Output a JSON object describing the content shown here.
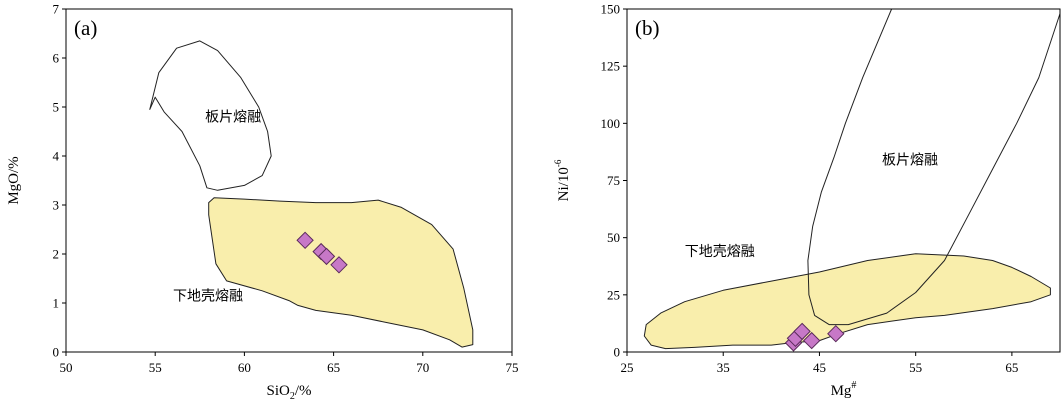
{
  "chart_data": [
    {
      "type": "scatter",
      "panel_label": "(a)",
      "xlabel": "SiO",
      "xlabel_sub": "2",
      "xlabel_suffix": "/%",
      "ylabel": "MgO/%",
      "xlim": [
        50,
        75
      ],
      "ylim": [
        0,
        7
      ],
      "xticks": [
        "50",
        "55",
        "60",
        "65",
        "70",
        "75"
      ],
      "yticks": [
        "0",
        "1",
        "2",
        "3",
        "4",
        "5",
        "6",
        "7"
      ],
      "fields": [
        {
          "name": "板片熔融",
          "fill": "none",
          "label_at": [
            57.8,
            4.7
          ],
          "outline": [
            [
              55.0,
              5.2
            ],
            [
              54.7,
              4.95
            ],
            [
              55.2,
              5.7
            ],
            [
              56.2,
              6.2
            ],
            [
              57.5,
              6.35
            ],
            [
              58.5,
              6.15
            ],
            [
              59.8,
              5.6
            ],
            [
              60.8,
              5.0
            ],
            [
              61.3,
              4.5
            ],
            [
              61.5,
              4.0
            ],
            [
              61.0,
              3.6
            ],
            [
              60.0,
              3.4
            ],
            [
              58.5,
              3.3
            ],
            [
              57.9,
              3.35
            ],
            [
              57.5,
              3.8
            ],
            [
              56.5,
              4.5
            ],
            [
              55.5,
              4.9
            ]
          ]
        },
        {
          "name": "下地壳熔融",
          "fill": "#f9eeac",
          "label_at": [
            56.0,
            1.05
          ],
          "outline": [
            [
              58.0,
              3.05
            ],
            [
              58.3,
              3.15
            ],
            [
              60.0,
              3.12
            ],
            [
              62.0,
              3.08
            ],
            [
              64.0,
              3.05
            ],
            [
              66.0,
              3.05
            ],
            [
              67.5,
              3.1
            ],
            [
              68.8,
              2.95
            ],
            [
              70.5,
              2.6
            ],
            [
              71.7,
              2.1
            ],
            [
              72.3,
              1.3
            ],
            [
              72.8,
              0.45
            ],
            [
              72.8,
              0.15
            ],
            [
              72.2,
              0.1
            ],
            [
              71.5,
              0.25
            ],
            [
              70.0,
              0.45
            ],
            [
              68.0,
              0.6
            ],
            [
              66.0,
              0.75
            ],
            [
              64.0,
              0.85
            ],
            [
              63.0,
              0.95
            ],
            [
              62.5,
              1.05
            ],
            [
              61.0,
              1.25
            ],
            [
              59.0,
              1.45
            ],
            [
              58.4,
              1.8
            ],
            [
              58.2,
              2.3
            ],
            [
              58.0,
              2.8
            ]
          ]
        }
      ],
      "points": [
        {
          "x": 63.4,
          "y": 2.28
        },
        {
          "x": 64.3,
          "y": 2.05
        },
        {
          "x": 64.6,
          "y": 1.95
        },
        {
          "x": 65.3,
          "y": 1.78
        }
      ],
      "marker": {
        "shape": "diamond",
        "fill": "#c778c7",
        "stroke": "#5a2a5a"
      }
    },
    {
      "type": "scatter",
      "panel_label": "(b)",
      "xlabel": "Mg",
      "xlabel_sup": "#",
      "ylabel": "Ni/10",
      "ylabel_sup": "-6",
      "xlim": [
        25,
        70
      ],
      "ylim": [
        0,
        150
      ],
      "xticks": [
        "25",
        "35",
        "45",
        "55",
        "65"
      ],
      "yticks": [
        "0",
        "25",
        "50",
        "75",
        "100",
        "125",
        "150"
      ],
      "fields": [
        {
          "name": "下地壳熔融",
          "fill": "#f9eeac",
          "label_at": [
            31.0,
            42.0
          ],
          "outline": [
            [
              27.5,
              3
            ],
            [
              26.8,
              7
            ],
            [
              27.0,
              12
            ],
            [
              28.5,
              17
            ],
            [
              31,
              22
            ],
            [
              35,
              27
            ],
            [
              40,
              31
            ],
            [
              45,
              35
            ],
            [
              50,
              40
            ],
            [
              55,
              43
            ],
            [
              60,
              42
            ],
            [
              63,
              40
            ],
            [
              65,
              37
            ],
            [
              67,
              33
            ],
            [
              69,
              28
            ],
            [
              69,
              25
            ],
            [
              67,
              22
            ],
            [
              63,
              19
            ],
            [
              58,
              16
            ],
            [
              55,
              15
            ],
            [
              50,
              12
            ],
            [
              47,
              8
            ],
            [
              45,
              5
            ],
            [
              42,
              4
            ],
            [
              40,
              3
            ],
            [
              36,
              3
            ],
            [
              32,
              2
            ],
            [
              29,
              1.5
            ]
          ]
        },
        {
          "name": "板片熔融",
          "fill": "none",
          "label_at": [
            51.5,
            82.0
          ],
          "outline": [
            [
              52.5,
              150
            ],
            [
              49.5,
              120
            ],
            [
              47.7,
              100
            ],
            [
              46.5,
              85
            ],
            [
              45.2,
              70
            ],
            [
              44.3,
              55
            ],
            [
              43.8,
              40
            ],
            [
              43.9,
              25
            ],
            [
              44.5,
              16
            ],
            [
              46,
              12
            ],
            [
              48,
              12
            ],
            [
              52,
              17
            ],
            [
              55,
              26
            ],
            [
              58,
              40
            ],
            [
              60.5,
              60
            ],
            [
              63,
              80
            ],
            [
              65.5,
              100
            ],
            [
              67.8,
              120
            ],
            [
              70,
              148
            ],
            [
              70,
              150
            ]
          ]
        }
      ],
      "points": [
        {
          "x": 42.3,
          "y": 4
        },
        {
          "x": 42.5,
          "y": 6
        },
        {
          "x": 43.2,
          "y": 9
        },
        {
          "x": 44.2,
          "y": 5
        },
        {
          "x": 46.7,
          "y": 8
        }
      ],
      "marker": {
        "shape": "diamond",
        "fill": "#c778c7",
        "stroke": "#5a2a5a"
      }
    }
  ]
}
